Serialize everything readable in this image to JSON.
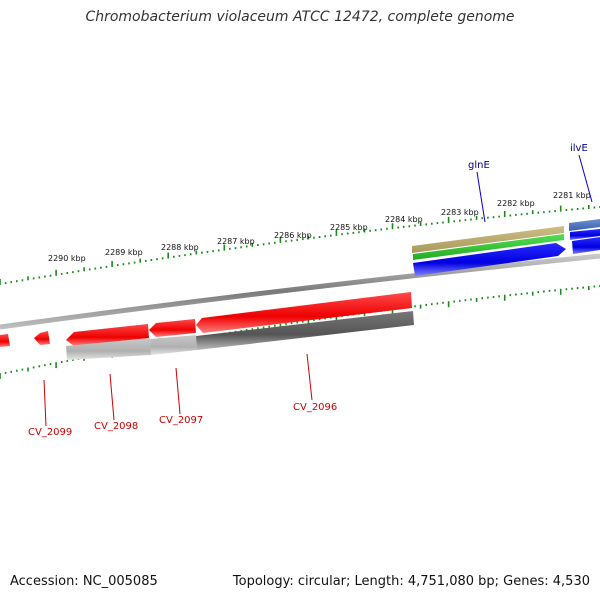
{
  "title": "Chromobacterium violaceum ATCC 12472, complete genome",
  "footer": {
    "accession": "Accession: NC_005085",
    "summary": "Topology: circular; Length: 4,751,080 bp; Genes: 4,530"
  },
  "scale_labels": [
    "2290 kbp",
    "2289 kbp",
    "2288 kbp",
    "2287 kbp",
    "2286 kbp",
    "2285 kbp",
    "2284 kbp",
    "2283 kbp",
    "2282 kbp",
    "2281 kbp"
  ],
  "genes_forward": [
    {
      "name": "glnE",
      "color": "#00008b"
    },
    {
      "name": "ilvE",
      "color": "#00008b"
    }
  ],
  "genes_reverse": [
    {
      "name": "CV_2099",
      "color": "#cc0000"
    },
    {
      "name": "CV_2098",
      "color": "#cc0000"
    },
    {
      "name": "CV_2097",
      "color": "#cc0000"
    },
    {
      "name": "CV_2096",
      "color": "#cc0000"
    }
  ],
  "colors": {
    "forward_cds": "#0000ee",
    "reverse_cds": "#ee0000",
    "backbone": "#888888",
    "ticks": "#1a8a1a",
    "olive": "#b8a86a",
    "green": "#33cc33"
  }
}
